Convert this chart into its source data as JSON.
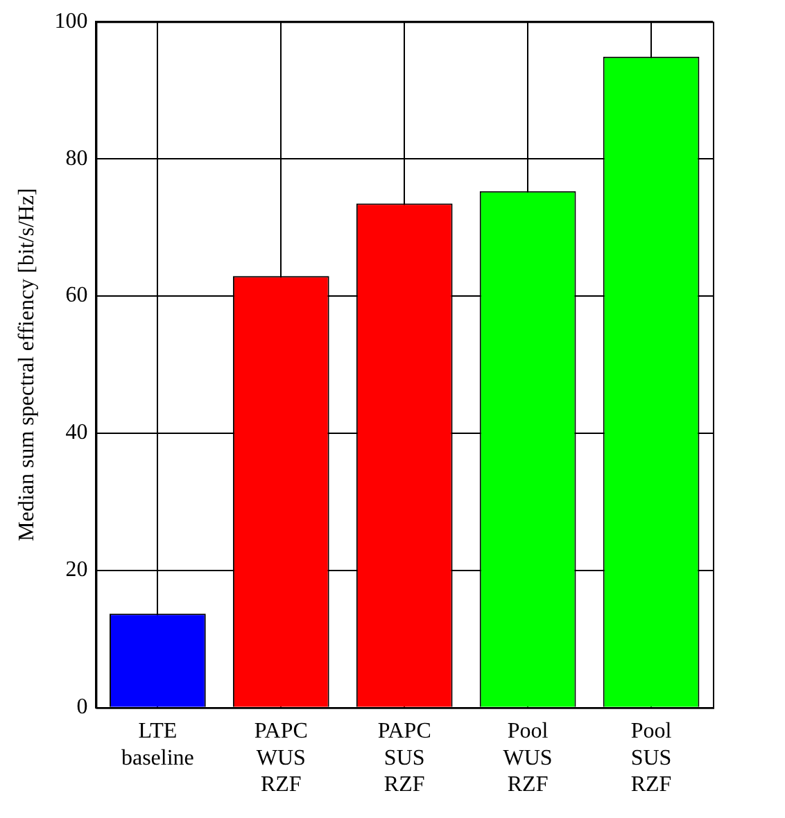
{
  "chart_data": {
    "type": "bar",
    "ylabel": "Median sum spectral effiency [bit/s/Hz]",
    "categories": [
      "LTE baseline",
      "PAPC WUS RZF",
      "PAPC SUS RZF",
      "Pool WUS RZF",
      "Pool SUS RZF"
    ],
    "values": [
      13.7,
      62.9,
      73.5,
      75.3,
      94.9
    ],
    "colors": [
      "#0000ff",
      "#ff0000",
      "#ff0000",
      "#00ff00",
      "#00ff00"
    ],
    "ylim": [
      0,
      100
    ],
    "yticks": [
      0,
      20,
      40,
      60,
      80,
      100
    ],
    "grid": true
  }
}
